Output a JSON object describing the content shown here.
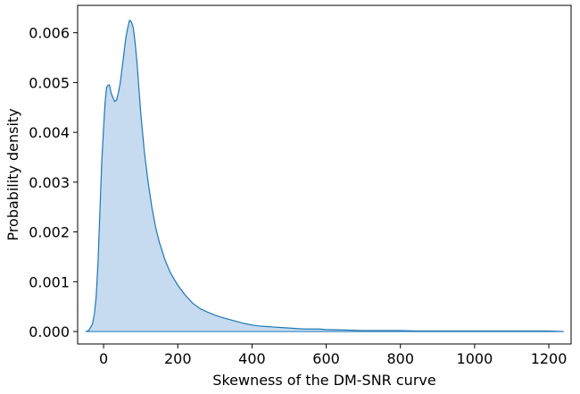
{
  "chart_data": {
    "type": "area",
    "title": "",
    "xlabel": "Skewness of the DM-SNR curve",
    "ylabel": "Probability density",
    "xlim": [
      -70,
      1260
    ],
    "ylim": [
      -0.00025,
      0.00655
    ],
    "xticks": [
      0,
      200,
      400,
      600,
      800,
      1000,
      1200
    ],
    "xtick_labels": [
      "0",
      "200",
      "400",
      "600",
      "800",
      "1000",
      "1200"
    ],
    "yticks": [
      0.0,
      0.001,
      0.002,
      0.003,
      0.004,
      0.005,
      0.006
    ],
    "ytick_labels": [
      "0.000",
      "0.001",
      "0.002",
      "0.003",
      "0.004",
      "0.005",
      "0.006"
    ],
    "grid": false,
    "legend": "none",
    "series": [
      {
        "x": [
          -48,
          -40,
          -30,
          -25,
          -20,
          -15,
          -10,
          -5,
          0,
          4,
          8,
          12,
          16,
          20,
          25,
          30,
          35,
          40,
          45,
          50,
          55,
          60,
          65,
          70,
          75,
          80,
          85,
          90,
          95,
          100,
          110,
          120,
          130,
          140,
          150,
          165,
          180,
          200,
          220,
          240,
          260,
          280,
          300,
          320,
          340,
          360,
          380,
          400,
          420,
          440,
          460,
          480,
          500,
          520,
          540,
          560,
          580,
          600,
          650,
          700,
          750,
          800,
          850,
          900,
          950,
          1000,
          1100,
          1200,
          1240
        ],
        "y": [
          0.0,
          2e-05,
          0.00015,
          0.00035,
          0.0007,
          0.0014,
          0.0024,
          0.0034,
          0.0041,
          0.0046,
          0.0049,
          0.00495,
          0.00495,
          0.0048,
          0.0047,
          0.00462,
          0.00465,
          0.0048,
          0.005,
          0.0053,
          0.0056,
          0.0059,
          0.0061,
          0.00625,
          0.00622,
          0.0061,
          0.0058,
          0.0054,
          0.0049,
          0.0044,
          0.0036,
          0.003,
          0.0025,
          0.0021,
          0.0018,
          0.00145,
          0.00118,
          0.00093,
          0.00073,
          0.00057,
          0.00046,
          0.00039,
          0.00033,
          0.00028,
          0.00024,
          0.0002,
          0.00016,
          0.00013,
          0.00011,
          0.0001,
          9e-05,
          8e-05,
          7e-05,
          6e-05,
          5e-05,
          5e-05,
          5e-05,
          4e-05,
          3e-05,
          2e-05,
          2e-05,
          2e-05,
          1e-05,
          1e-05,
          1e-05,
          1e-05,
          1e-05,
          1e-05,
          0.0
        ],
        "line_color": "#1f77b4",
        "fill_color": "#c6dbef"
      }
    ]
  }
}
